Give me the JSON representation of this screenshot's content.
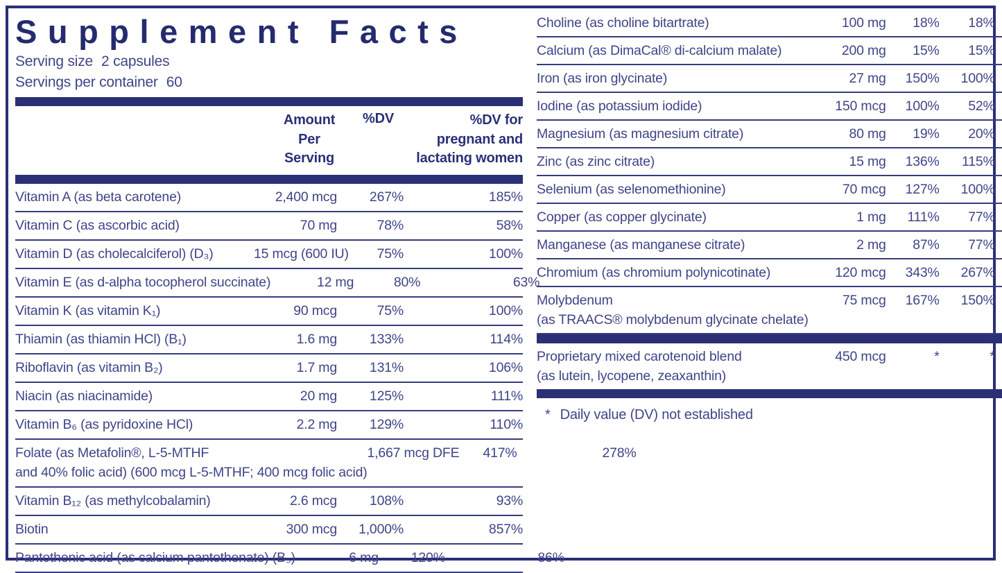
{
  "colors": {
    "navy": "#2A2F76",
    "body_text": "#3F4487",
    "hairline": "#363C7E",
    "title_text": "#242B6E"
  },
  "panel": {
    "title": "Supplement Facts",
    "serving_size_label": "Serving size",
    "serving_size_value": "2 capsules",
    "servings_per_container_label": "Servings per container",
    "servings_per_container_value": "60"
  },
  "table_header": {
    "amount": "Amount\nPer\nServing",
    "dv": "%DV",
    "dv_pregnant": "%DV for\npregnant and\nlactating women"
  },
  "vitamin_rows": [
    {
      "name": "Vitamin A (as beta carotene)",
      "name2": "",
      "amount": "2,400 mcg",
      "dv": "267%",
      "dv_pregnant": "185%"
    },
    {
      "name": "Vitamin C (as ascorbic acid)",
      "name2": "",
      "amount": "70 mg",
      "dv": "78%",
      "dv_pregnant": "58%"
    },
    {
      "name": "Vitamin D (as cholecalciferol) (D₃)",
      "name2": "",
      "amount": "15 mcg (600 IU)",
      "dv": "75%",
      "dv_pregnant": "100%"
    },
    {
      "name": "Vitamin E (as d-alpha tocopherol succinate)",
      "name2": "",
      "amount": "12 mg",
      "dv": "80%",
      "dv_pregnant": "63%"
    },
    {
      "name": "Vitamin K (as vitamin K₁)",
      "name2": "",
      "amount": "90 mcg",
      "dv": "75%",
      "dv_pregnant": "100%"
    },
    {
      "name": "Thiamin (as thiamin HCl) (B₁)",
      "name2": "",
      "amount": "1.6 mg",
      "dv": "133%",
      "dv_pregnant": "114%"
    },
    {
      "name": "Riboflavin (as vitamin B₂)",
      "name2": "",
      "amount": "1.7 mg",
      "dv": "131%",
      "dv_pregnant": "106%"
    },
    {
      "name": "Niacin (as niacinamide)",
      "name2": "",
      "amount": "20 mg",
      "dv": "125%",
      "dv_pregnant": "111%"
    },
    {
      "name": "Vitamin B₆ (as pyridoxine HCl)",
      "name2": "",
      "amount": "2.2 mg",
      "dv": "129%",
      "dv_pregnant": "110%"
    },
    {
      "name": "Folate (as Metafolin®, L-5-MTHF",
      "name2": "and 40% folic acid) (600 mcg L-5-MTHF; 400 mcg folic acid)",
      "amount": "1,667 mcg DFE",
      "dv": "417%",
      "dv_pregnant": "278%"
    },
    {
      "name": "Vitamin B₁₂ (as methylcobalamin)",
      "name2": "",
      "amount": "2.6 mcg",
      "dv": "108%",
      "dv_pregnant": "93%"
    },
    {
      "name": "Biotin",
      "name2": "",
      "amount": "300 mcg",
      "dv": "1,000%",
      "dv_pregnant": "857%"
    },
    {
      "name": "Pantothenic acid (as calcium pantothenate) (B₅)",
      "name2": "",
      "amount": "6 mg",
      "dv": "120%",
      "dv_pregnant": "86%"
    }
  ],
  "mineral_rows": [
    {
      "name": "Choline (as choline bitartrate)",
      "name2": "",
      "amount": "100 mg",
      "dv": "18%",
      "dv_pregnant": "18%"
    },
    {
      "name": "Calcium (as DimaCal® di-calcium malate)",
      "name2": "",
      "amount": "200 mg",
      "dv": "15%",
      "dv_pregnant": "15%"
    },
    {
      "name": "Iron (as iron glycinate)",
      "name2": "",
      "amount": "27 mg",
      "dv": "150%",
      "dv_pregnant": "100%"
    },
    {
      "name": "Iodine (as potassium iodide)",
      "name2": "",
      "amount": "150 mcg",
      "dv": "100%",
      "dv_pregnant": "52%"
    },
    {
      "name": "Magnesium (as magnesium citrate)",
      "name2": "",
      "amount": "80 mg",
      "dv": "19%",
      "dv_pregnant": "20%"
    },
    {
      "name": "Zinc (as zinc citrate)",
      "name2": "",
      "amount": "15 mg",
      "dv": "136%",
      "dv_pregnant": "115%"
    },
    {
      "name": "Selenium (as selenomethionine)",
      "name2": "",
      "amount": "70 mcg",
      "dv": "127%",
      "dv_pregnant": "100%"
    },
    {
      "name": "Copper (as copper glycinate)",
      "name2": "",
      "amount": "1 mg",
      "dv": "111%",
      "dv_pregnant": "77%"
    },
    {
      "name": "Manganese (as manganese citrate)",
      "name2": "",
      "amount": "2 mg",
      "dv": "87%",
      "dv_pregnant": "77%"
    },
    {
      "name": "Chromium (as chromium polynicotinate)",
      "name2": "",
      "amount": "120 mcg",
      "dv": "343%",
      "dv_pregnant": "267%"
    },
    {
      "name": "Molybdenum",
      "name2": "(as TRAACS® molybdenum glycinate chelate)",
      "amount": "75 mcg",
      "dv": "167%",
      "dv_pregnant": "150%"
    }
  ],
  "blend_rows": [
    {
      "name": "Proprietary mixed carotenoid blend",
      "name2": "(as lutein, lycopene, zeaxanthin)",
      "amount": "450 mcg",
      "dv": "*",
      "dv_pregnant": "*"
    }
  ],
  "footnote": {
    "symbol": "*",
    "text": "Daily value (DV) not established"
  }
}
